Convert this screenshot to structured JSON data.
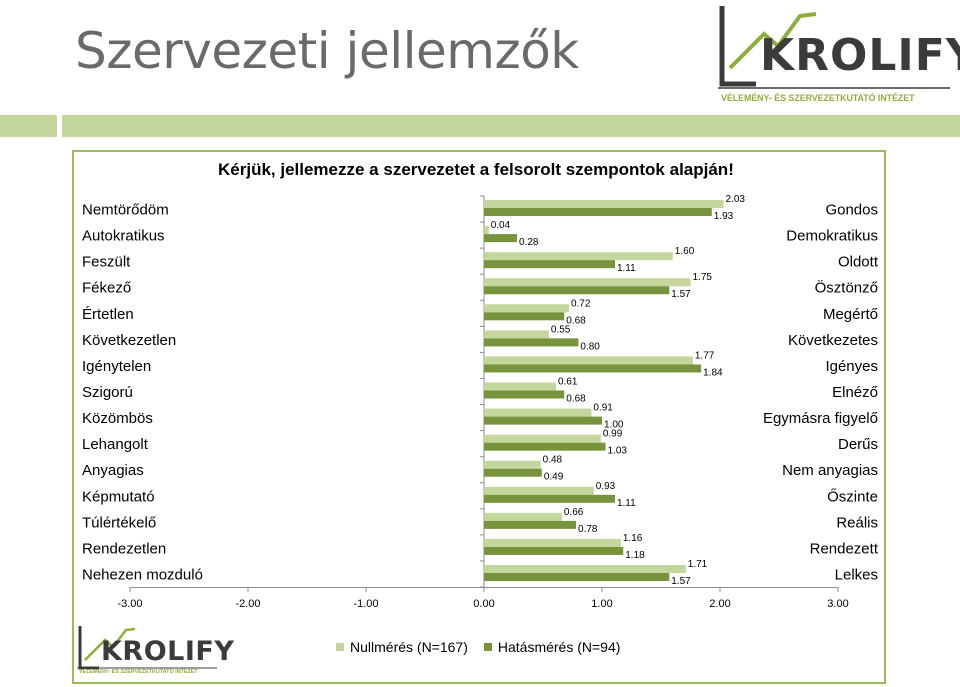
{
  "slide": {
    "title": "Szervezeti jellemzők"
  },
  "brand": {
    "name": "KROLIFY",
    "tagline": "VÉLEMÉNY- ÉS SZERVEZETKUTATÓ INTÉZET"
  },
  "colors": {
    "series1": "#c3d69b",
    "series2": "#77933c",
    "accent_bar": "#c3d69b",
    "frame": "#9bbb59",
    "tagline": "#8dae3c"
  },
  "chart_data": {
    "type": "bar",
    "orientation": "horizontal",
    "title": "Kérjük, jellemezze a szervezetet a felsorolt szempontok alapján!",
    "left_labels": [
      "Nemtörődöm",
      "Autokratikus",
      "Feszült",
      "Fékező",
      "Értetlen",
      "Következetlen",
      "Igénytelen",
      "Szigorú",
      "Közömbös",
      "Lehangolt",
      "Anyagias",
      "Képmutató",
      "Túlértékelő",
      "Rendezetlen",
      "Nehezen mozduló"
    ],
    "right_labels": [
      "Gondos",
      "Demokratikus",
      "Oldott",
      "Ösztönző",
      "Megértő",
      "Következetes",
      "Igényes",
      "Elnéző",
      "Egymásra figyelő",
      "Derűs",
      "Nem anyagias",
      "Őszinte",
      "Reális",
      "Rendezett",
      "Lelkes"
    ],
    "series": [
      {
        "name": "Nullmérés (N=167)",
        "values": [
          2.03,
          0.04,
          1.6,
          1.75,
          0.72,
          0.55,
          1.77,
          0.61,
          0.91,
          0.99,
          0.48,
          0.93,
          0.66,
          1.16,
          1.71
        ],
        "labels": [
          "2.03",
          "0.04",
          "1.60",
          "1.75",
          "0.72",
          "0.55",
          "1.77",
          "0.61",
          "0.91",
          "0.99",
          "0.48",
          "0.93",
          "0.66",
          "1.16",
          "1.71"
        ]
      },
      {
        "name": "Hatásmérés (N=94)",
        "values": [
          1.93,
          0.28,
          1.11,
          1.57,
          0.68,
          0.8,
          1.84,
          0.68,
          1.0,
          1.03,
          0.49,
          1.11,
          0.78,
          1.18,
          1.57
        ],
        "labels": [
          "1.93",
          "0.28",
          "1.11",
          "1.57",
          "0.68",
          "0.80",
          "1.84",
          "0.68",
          "1.00",
          "1.03",
          "0.49",
          "1.11",
          "0.78",
          "1.18",
          "1.57"
        ]
      }
    ],
    "xlim": [
      -3,
      3
    ],
    "xticks": [
      -3,
      -2,
      -1,
      0,
      1,
      2,
      3
    ],
    "xtick_labels": [
      "-3.00",
      "-2.00",
      "-1.00",
      "0.00",
      "1.00",
      "2.00",
      "3.00"
    ],
    "legend_position": "bottom"
  }
}
